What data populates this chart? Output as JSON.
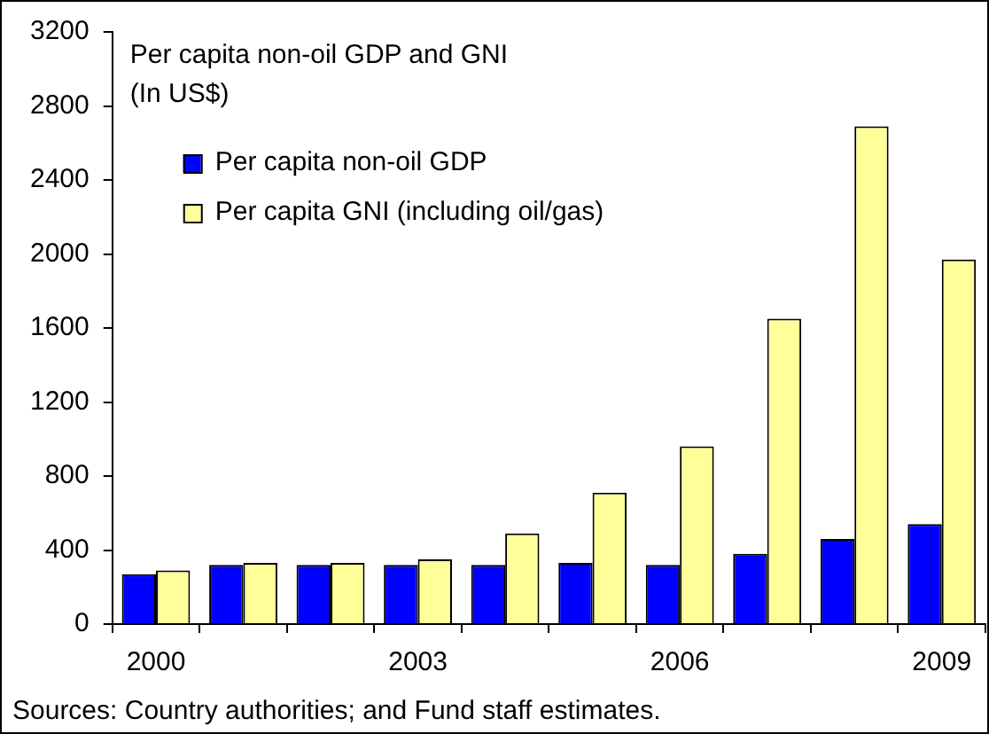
{
  "chart_data": {
    "type": "bar",
    "title": "Per capita non-oil GDP and GNI",
    "subtitle": "(In US$)",
    "categories": [
      "2000",
      null,
      null,
      "2003",
      null,
      null,
      "2006",
      null,
      null,
      "2009"
    ],
    "series": [
      {
        "name": "Per capita non-oil GDP",
        "color": "#0000ff",
        "values": [
          270,
          320,
          320,
          320,
          320,
          330,
          320,
          380,
          460,
          540
        ]
      },
      {
        "name": "Per capita GNI (including oil/gas)",
        "color": "#ffff99",
        "values": [
          290,
          330,
          330,
          350,
          490,
          710,
          960,
          1650,
          2690,
          1970
        ]
      }
    ],
    "ylim": [
      0,
      3200
    ],
    "yticks": [
      0,
      400,
      800,
      1200,
      1600,
      2000,
      2400,
      2800,
      3200
    ],
    "grid": false,
    "legend": "top left",
    "annotations": [
      "Sources: Country authorities; and Fund staff estimates."
    ]
  }
}
